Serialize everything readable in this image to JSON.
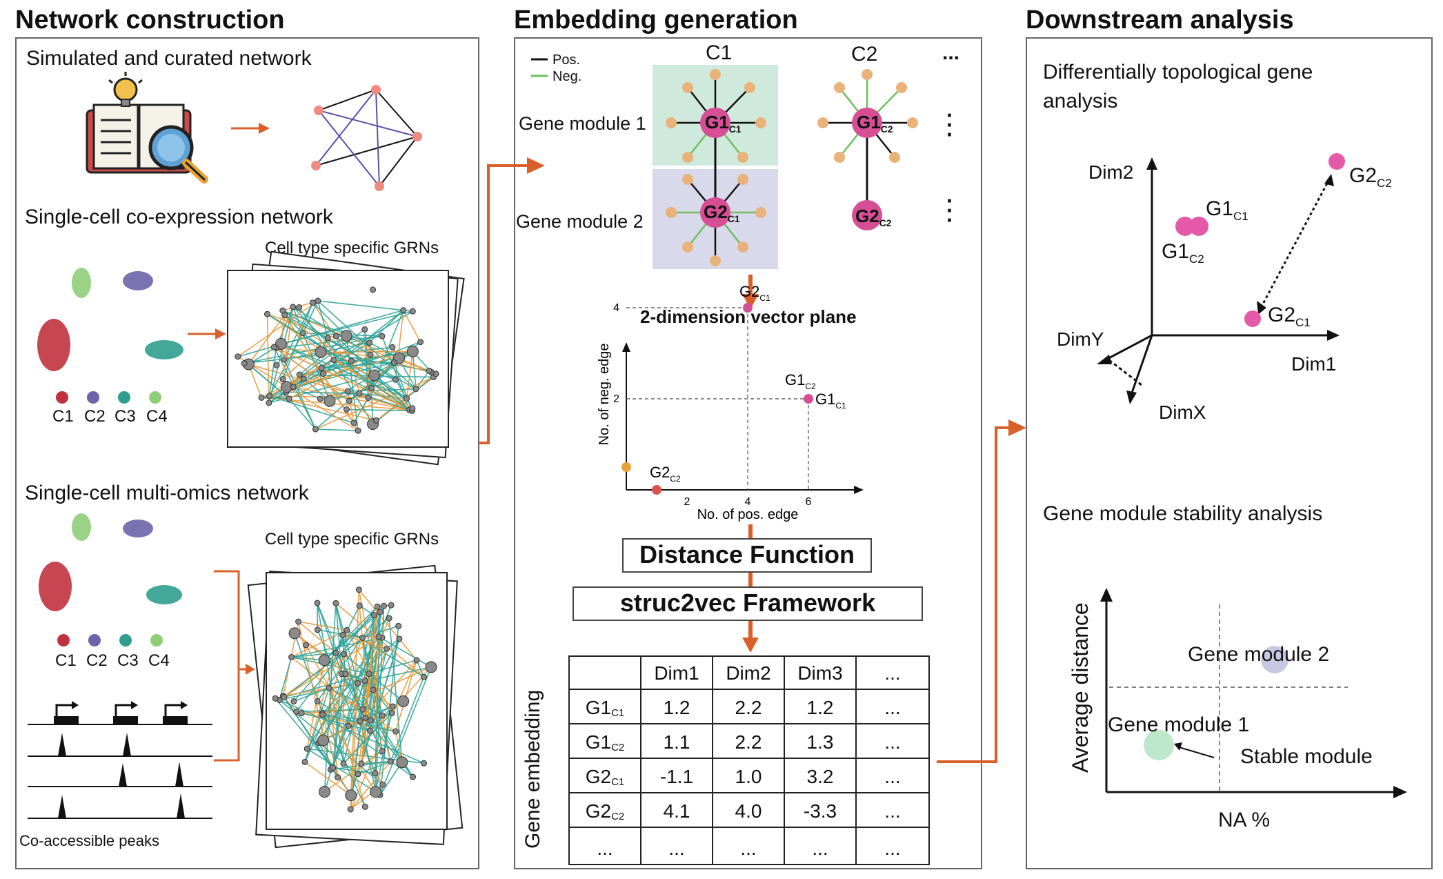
{
  "sections": {
    "network_construction": {
      "title": "Network construction",
      "curated": "Simulated and curated network",
      "coexpression": "Single-cell co-expression network",
      "multiomics": "Single-cell multi-omics network",
      "grn_label_1": "Cell type specific GRNs",
      "grn_label_2": "Cell type specific GRNs",
      "clusters": [
        {
          "label": "C1",
          "color": "#c0323f"
        },
        {
          "label": "C2",
          "color": "#6b64a8"
        },
        {
          "label": "C3",
          "color": "#2f9e8f"
        },
        {
          "label": "C4",
          "color": "#8fce79"
        }
      ],
      "peaks_label": "Co-accessible peaks"
    },
    "embedding_generation": {
      "title": "Embedding generation",
      "legend_pos": "Pos.",
      "legend_neg": "Neg.",
      "col_c1": "C1",
      "col_c2": "C2",
      "col_more": "...",
      "gene_module_1": "Gene module 1",
      "gene_module_2": "Gene module 2",
      "g1": "G1",
      "g2": "G2",
      "sub_c1": "C1",
      "sub_c2": "C2",
      "plane_title": "2-dimension vector plane",
      "xlabel": "No. of pos. edge",
      "ylabel": "No. of neg. edge",
      "distance_function": "Distance Function",
      "struc2vec": "struc2vec Framework",
      "embedding_label": "Gene embedding",
      "table": {
        "headers": [
          "",
          "Dim1",
          "Dim2",
          "Dim3",
          "..."
        ],
        "rows": [
          {
            "gene": "G1",
            "sub": "C1",
            "values": [
              "1.2",
              "2.2",
              "1.2",
              "..."
            ]
          },
          {
            "gene": "G1",
            "sub": "C2",
            "values": [
              "1.1",
              "2.2",
              "1.3",
              "..."
            ]
          },
          {
            "gene": "G2",
            "sub": "C1",
            "values": [
              "-1.1",
              "1.0",
              "3.2",
              "..."
            ]
          },
          {
            "gene": "G2",
            "sub": "C2",
            "values": [
              "4.1",
              "4.0",
              "-3.3",
              "..."
            ]
          },
          {
            "gene": "...",
            "sub": "",
            "values": [
              "...",
              "...",
              "...",
              "..."
            ]
          }
        ]
      }
    },
    "downstream_analysis": {
      "title": "Downstream analysis",
      "dtga_title_1": "Differentially topological gene",
      "dtga_title_2": "analysis",
      "dim1": "Dim1",
      "dim2": "Dim2",
      "dimx": "DimX",
      "dimy": "DimY",
      "stability_title": "Gene module stability analysis",
      "ylabel": "Average distance",
      "xlabel": "NA %",
      "gm1": "Gene module 1",
      "gm2": "Gene module 2",
      "stable": "Stable module"
    }
  },
  "chart_data": {
    "type": "scatter",
    "title": "2-dimension vector plane",
    "xlabel": "No. of pos. edge",
    "ylabel": "No. of neg. edge",
    "xticks": [
      2,
      4,
      6
    ],
    "yticks": [
      2,
      4
    ],
    "points": [
      {
        "label": "G2",
        "sub": "C1",
        "x": 4,
        "y": 4
      },
      {
        "label": "G1",
        "sub": "C2",
        "x": 6,
        "y": 2
      },
      {
        "label": "G1",
        "sub": "C1",
        "x": 6,
        "y": 2
      },
      {
        "label": "G2",
        "sub": "C2",
        "x": 1,
        "y": 0
      }
    ]
  },
  "colors": {
    "accent_arrow": "#d9602b",
    "pos_edge": "#111111",
    "neg_edge": "#6cbf5a",
    "hub_pink": "#d64f95",
    "leaf_orange": "#e8b27a",
    "module1_bg": "#cfe9dc",
    "module2_bg": "#d8d9ea"
  }
}
